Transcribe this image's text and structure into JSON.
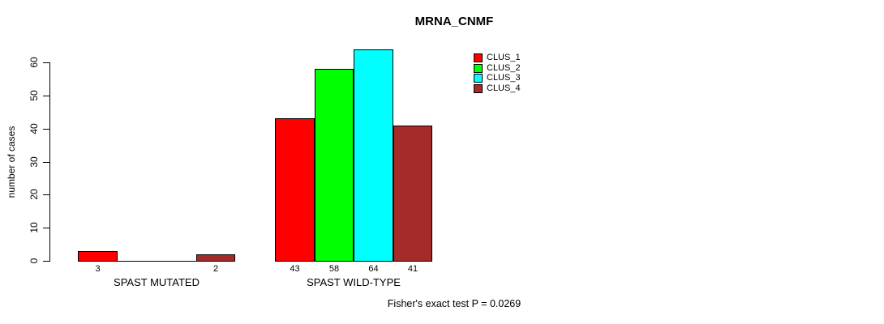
{
  "chart_data": {
    "type": "bar",
    "title": "MRNA_CNMF",
    "ylabel": "number of cases",
    "ylim": [
      0,
      60
    ],
    "yticks": [
      0,
      10,
      20,
      30,
      40,
      50,
      60
    ],
    "grid": false,
    "legend_position": "top-right",
    "categories": [
      "SPAST MUTATED",
      "SPAST WILD-TYPE"
    ],
    "series": [
      {
        "name": "CLUS_1",
        "color": "#FF0000",
        "values": [
          3,
          43
        ]
      },
      {
        "name": "CLUS_2",
        "color": "#00FF00",
        "values": [
          0,
          58
        ]
      },
      {
        "name": "CLUS_3",
        "color": "#00FFFF",
        "values": [
          0,
          64
        ]
      },
      {
        "name": "CLUS_4",
        "color": "#A52A2A",
        "values": [
          2,
          41
        ]
      }
    ],
    "bar_labels": [
      [
        "3",
        "",
        "",
        "2"
      ],
      [
        "43",
        "58",
        "64",
        "41"
      ]
    ],
    "note": "Fisher's exact test P = 0.0269",
    "axis_color": "#000000",
    "background_color": "#FFFFFF"
  }
}
